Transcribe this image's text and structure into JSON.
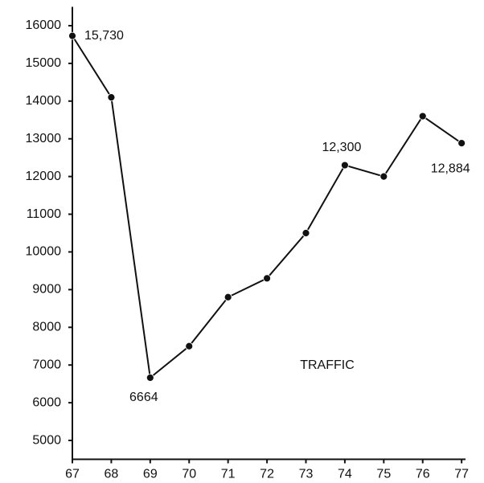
{
  "chart_data": {
    "type": "line",
    "x": [
      67,
      68,
      69,
      70,
      71,
      72,
      73,
      74,
      75,
      76,
      77
    ],
    "series": [
      {
        "name": "TRAFFIC",
        "color": "#111111",
        "values": [
          15730,
          14100,
          6664,
          7500,
          8800,
          9300,
          10500,
          12300,
          12000,
          13600,
          12884
        ],
        "value_labels": [
          "15,730",
          null,
          "6664",
          null,
          null,
          null,
          null,
          "12,300",
          null,
          null,
          "12,884"
        ]
      }
    ],
    "annotation": "TRAFFIC",
    "xlim": [
      67,
      77.1
    ],
    "xticks": [
      67,
      68,
      69,
      70,
      71,
      72,
      73,
      74,
      75,
      76,
      77
    ],
    "ylim": [
      4500,
      16500
    ],
    "yticks": [
      5000,
      6000,
      7000,
      8000,
      9000,
      10000,
      11000,
      12000,
      13000,
      14000,
      15000,
      16000
    ],
    "grid": false
  }
}
